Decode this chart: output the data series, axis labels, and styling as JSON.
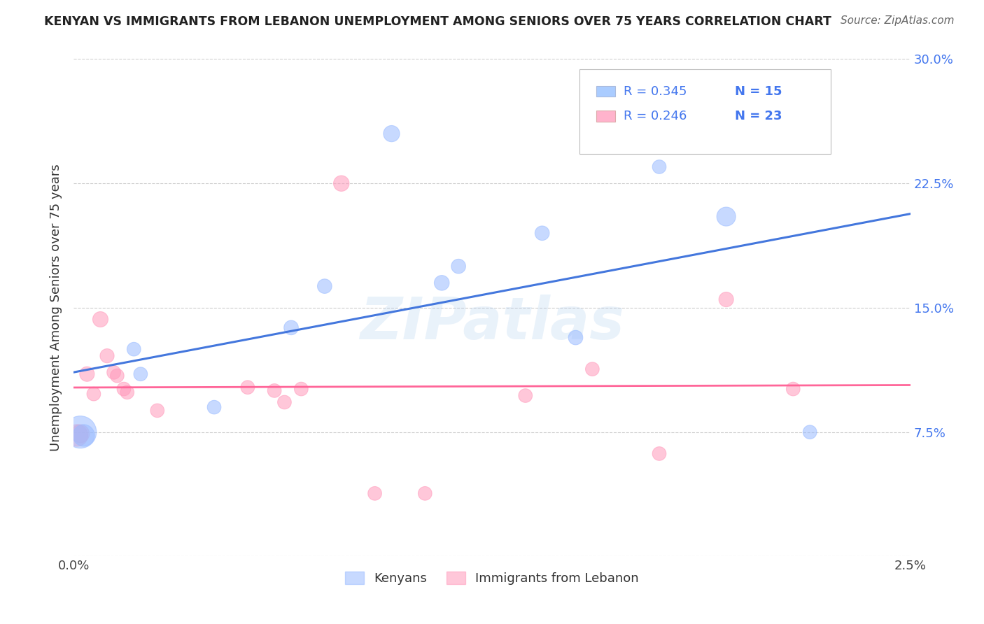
{
  "title": "KENYAN VS IMMIGRANTS FROM LEBANON UNEMPLOYMENT AMONG SENIORS OVER 75 YEARS CORRELATION CHART",
  "source": "Source: ZipAtlas.com",
  "ylabel": "Unemployment Among Seniors over 75 years",
  "xlim": [
    0.0,
    0.025
  ],
  "ylim": [
    0.0,
    0.3
  ],
  "x_ticks": [
    0.0,
    0.005,
    0.01,
    0.015,
    0.02,
    0.025
  ],
  "x_tick_labels": [
    "0.0%",
    "",
    "",
    "",
    "",
    "2.5%"
  ],
  "y_ticks": [
    0.0,
    0.075,
    0.15,
    0.225,
    0.3
  ],
  "y_tick_labels": [
    "",
    "7.5%",
    "15.0%",
    "22.5%",
    "30.0%"
  ],
  "legend_kenyans": "Kenyans",
  "legend_lebanon": "Immigrants from Lebanon",
  "r_kenyans": "R = 0.345",
  "n_kenyans": "N = 15",
  "r_lebanon": "R = 0.246",
  "n_lebanon": "N = 23",
  "blue_scatter": "#99BBFF",
  "pink_scatter": "#FF99BB",
  "blue_line": "#4477DD",
  "pink_line": "#FF6699",
  "blue_legend_sq": "#AACCFF",
  "pink_legend_sq": "#FFB3CC",
  "text_color_blue": "#4477EE",
  "text_color_dark": "#333333",
  "kenyans_x": [
    0.0002,
    0.0003,
    0.0018,
    0.002,
    0.0042,
    0.0065,
    0.0075,
    0.0095,
    0.011,
    0.0115,
    0.014,
    0.015,
    0.0175,
    0.0195,
    0.022
  ],
  "kenyans_y": [
    0.075,
    0.073,
    0.125,
    0.11,
    0.09,
    0.138,
    0.163,
    0.255,
    0.165,
    0.175,
    0.195,
    0.132,
    0.235,
    0.205,
    0.075
  ],
  "kenyans_size": [
    1100,
    500,
    200,
    200,
    200,
    220,
    220,
    280,
    240,
    220,
    220,
    220,
    200,
    380,
    200
  ],
  "lebanon_x": [
    0.0001,
    0.0002,
    0.0004,
    0.0006,
    0.0008,
    0.001,
    0.0012,
    0.0013,
    0.0015,
    0.0016,
    0.0025,
    0.0052,
    0.006,
    0.0063,
    0.0068,
    0.008,
    0.009,
    0.0105,
    0.0135,
    0.0155,
    0.0175,
    0.0195,
    0.0215
  ],
  "lebanon_y": [
    0.073,
    0.074,
    0.11,
    0.098,
    0.143,
    0.121,
    0.111,
    0.109,
    0.101,
    0.099,
    0.088,
    0.102,
    0.1,
    0.093,
    0.101,
    0.225,
    0.038,
    0.038,
    0.097,
    0.113,
    0.062,
    0.155,
    0.101
  ],
  "lebanon_size": [
    500,
    350,
    230,
    200,
    250,
    210,
    200,
    200,
    200,
    200,
    200,
    200,
    200,
    200,
    200,
    260,
    200,
    200,
    200,
    200,
    200,
    230,
    200
  ],
  "watermark": "ZIPatlas",
  "background_color": "#FFFFFF",
  "grid_color": "#CCCCCC"
}
